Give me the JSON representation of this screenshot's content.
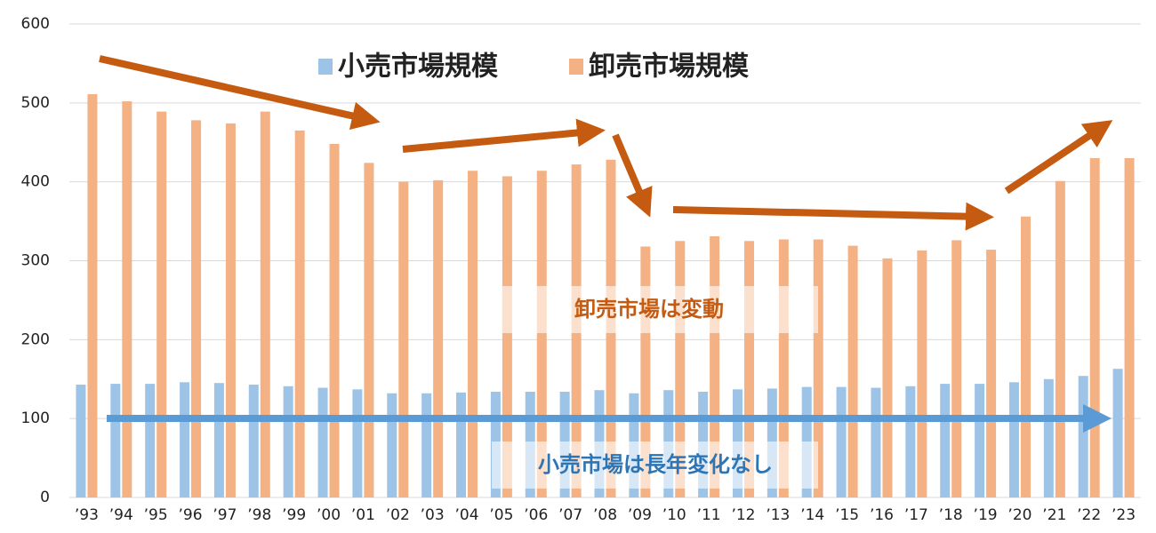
{
  "chart_data": {
    "type": "bar",
    "categories": [
      "’93",
      "’94",
      "’95",
      "’96",
      "’97",
      "’98",
      "’99",
      "’00",
      "’01",
      "’02",
      "’03",
      "’04",
      "’05",
      "’06",
      "’07",
      "’08",
      "’09",
      "’10",
      "’11",
      "’12",
      "’13",
      "’14",
      "’15",
      "’16",
      "’17",
      "’18",
      "’19",
      "’20",
      "’21",
      "’22",
      "’23"
    ],
    "series": [
      {
        "name": "小売市場規模",
        "color": "#9dc3e6",
        "values": [
          143,
          144,
          144,
          146,
          145,
          143,
          141,
          139,
          137,
          132,
          132,
          133,
          134,
          134,
          134,
          136,
          132,
          136,
          134,
          137,
          138,
          140,
          140,
          139,
          141,
          144,
          144,
          146,
          150,
          154,
          163
        ]
      },
      {
        "name": "卸売市場規模",
        "color": "#f4b183",
        "values": [
          511,
          502,
          489,
          478,
          474,
          489,
          465,
          448,
          424,
          400,
          402,
          414,
          407,
          414,
          422,
          428,
          318,
          325,
          331,
          325,
          327,
          327,
          319,
          303,
          313,
          326,
          314,
          356,
          401,
          430,
          430
        ]
      }
    ],
    "ylim": [
      0,
      600
    ],
    "yticks": [
      0,
      100,
      200,
      300,
      400,
      500,
      600
    ],
    "grid": true,
    "annotations": [
      "卸売市場は変動",
      "小売市場は長年変化なし"
    ]
  }
}
